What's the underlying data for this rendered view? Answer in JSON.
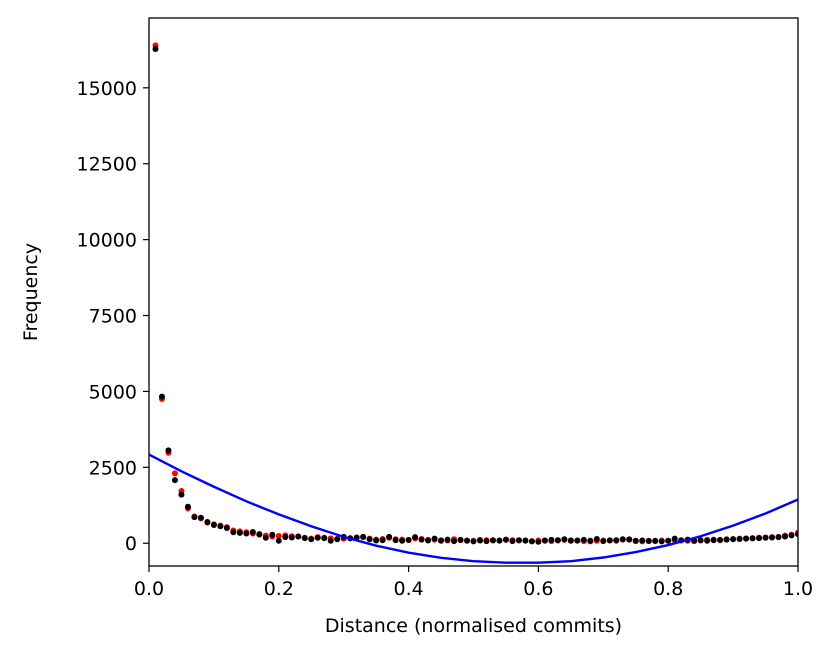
{
  "chart_data": {
    "type": "scatter",
    "title": "",
    "xlabel": "Distance (normalised commits)",
    "ylabel": "Frequency",
    "xlim": [
      0.0,
      1.0
    ],
    "ylim": [
      -750,
      17300
    ],
    "grid": false,
    "legend": "none",
    "x_ticks": [
      0.0,
      0.2,
      0.4,
      0.6,
      0.8,
      1.0
    ],
    "x_tick_labels": [
      "0.0",
      "0.2",
      "0.4",
      "0.6",
      "0.8",
      "1.0"
    ],
    "y_ticks": [
      0,
      2500,
      5000,
      7500,
      10000,
      12500,
      15000
    ],
    "y_tick_labels": [
      "0",
      "2500",
      "5000",
      "7500",
      "10000",
      "12500",
      "15000"
    ],
    "colors": {
      "red_series": "#ff0000",
      "black_series": "#000000",
      "fit_line": "#0000ff"
    },
    "series": [
      {
        "kind": "scatter",
        "color": "#ff0000",
        "x": [
          0.01,
          0.02,
          0.03,
          0.04,
          0.05,
          0.06,
          0.07,
          0.08,
          0.09,
          0.1,
          0.11,
          0.12,
          0.13,
          0.14,
          0.15,
          0.16,
          0.17,
          0.18,
          0.19,
          0.2,
          0.21,
          0.22,
          0.23,
          0.24,
          0.25,
          0.26,
          0.27,
          0.28,
          0.29,
          0.3,
          0.31,
          0.32,
          0.33,
          0.34,
          0.35,
          0.36,
          0.37,
          0.38,
          0.39,
          0.4,
          0.41,
          0.42,
          0.43,
          0.44,
          0.45,
          0.46,
          0.47,
          0.48,
          0.49,
          0.5,
          0.51,
          0.52,
          0.53,
          0.54,
          0.55,
          0.56,
          0.57,
          0.58,
          0.59,
          0.6,
          0.61,
          0.62,
          0.63,
          0.64,
          0.65,
          0.66,
          0.67,
          0.68,
          0.69,
          0.7,
          0.71,
          0.72,
          0.73,
          0.74,
          0.75,
          0.76,
          0.77,
          0.78,
          0.79,
          0.8,
          0.81,
          0.82,
          0.83,
          0.84,
          0.85,
          0.86,
          0.87,
          0.88,
          0.89,
          0.9,
          0.91,
          0.92,
          0.93,
          0.94,
          0.95,
          0.96,
          0.97,
          0.98,
          0.99,
          1.0
        ],
        "y": [
          16400,
          4750,
          2980,
          2300,
          1720,
          1150,
          880,
          820,
          680,
          620,
          580,
          530,
          420,
          390,
          360,
          320,
          280,
          250,
          220,
          240,
          260,
          230,
          220,
          180,
          150,
          200,
          180,
          160,
          140,
          150,
          170,
          180,
          200,
          150,
          120,
          140,
          180,
          130,
          120,
          100,
          160,
          140,
          110,
          120,
          100,
          90,
          130,
          100,
          90,
          80,
          110,
          100,
          90,
          80,
          110,
          100,
          90,
          80,
          70,
          90,
          80,
          70,
          90,
          110,
          100,
          80,
          70,
          60,
          80,
          90,
          100,
          80,
          120,
          130,
          70,
          60,
          80,
          70,
          90,
          80,
          100,
          90,
          80,
          70,
          90,
          110,
          120,
          100,
          130,
          140,
          150,
          160,
          170,
          180,
          190,
          200,
          210,
          250,
          280,
          350
        ]
      },
      {
        "kind": "scatter",
        "color": "#000000",
        "x": [
          0.01,
          0.02,
          0.03,
          0.04,
          0.05,
          0.06,
          0.07,
          0.08,
          0.09,
          0.1,
          0.11,
          0.12,
          0.13,
          0.14,
          0.15,
          0.16,
          0.17,
          0.18,
          0.19,
          0.2,
          0.21,
          0.22,
          0.23,
          0.24,
          0.25,
          0.26,
          0.27,
          0.28,
          0.29,
          0.3,
          0.31,
          0.32,
          0.33,
          0.34,
          0.35,
          0.36,
          0.37,
          0.38,
          0.39,
          0.4,
          0.41,
          0.42,
          0.43,
          0.44,
          0.45,
          0.46,
          0.47,
          0.48,
          0.49,
          0.5,
          0.51,
          0.52,
          0.53,
          0.54,
          0.55,
          0.56,
          0.57,
          0.58,
          0.59,
          0.6,
          0.61,
          0.62,
          0.63,
          0.64,
          0.65,
          0.66,
          0.67,
          0.68,
          0.69,
          0.7,
          0.71,
          0.72,
          0.73,
          0.74,
          0.75,
          0.76,
          0.77,
          0.78,
          0.79,
          0.8,
          0.81,
          0.82,
          0.83,
          0.84,
          0.85,
          0.86,
          0.87,
          0.88,
          0.89,
          0.9,
          0.91,
          0.92,
          0.93,
          0.94,
          0.95,
          0.96,
          0.97,
          0.98,
          0.99,
          1.0
        ],
        "y": [
          16280,
          4830,
          3060,
          2080,
          1600,
          1200,
          860,
          840,
          700,
          600,
          560,
          500,
          360,
          340,
          320,
          370,
          300,
          180,
          280,
          80,
          200,
          190,
          220,
          170,
          130,
          180,
          170,
          80,
          130,
          210,
          160,
          190,
          210,
          130,
          90,
          100,
          210,
          100,
          80,
          110,
          200,
          120,
          90,
          150,
          80,
          120,
          70,
          110,
          80,
          60,
          90,
          70,
          100,
          90,
          120,
          70,
          100,
          90,
          60,
          50,
          90,
          110,
          100,
          130,
          80,
          90,
          110,
          80,
          140,
          70,
          90,
          100,
          130,
          120,
          80,
          90,
          70,
          80,
          60,
          80,
          150,
          100,
          120,
          90,
          100,
          80,
          100,
          110,
          120,
          130,
          140,
          150,
          160,
          170,
          180,
          190,
          200,
          220,
          260,
          300
        ]
      },
      {
        "kind": "line",
        "color": "#0000ff",
        "description_x": [
          0.0,
          0.05,
          0.1,
          0.15,
          0.2,
          0.25,
          0.3,
          0.35,
          0.4,
          0.45,
          0.5,
          0.55,
          0.6,
          0.65,
          0.7,
          0.75,
          0.8,
          0.85,
          0.9,
          0.95,
          1.0
        ],
        "y": [
          2920,
          2370,
          1860,
          1380,
          950,
          560,
          210,
          -80,
          -310,
          -480,
          -590,
          -640,
          -640,
          -590,
          -470,
          -290,
          -60,
          230,
          580,
          980,
          1440
        ]
      }
    ]
  }
}
